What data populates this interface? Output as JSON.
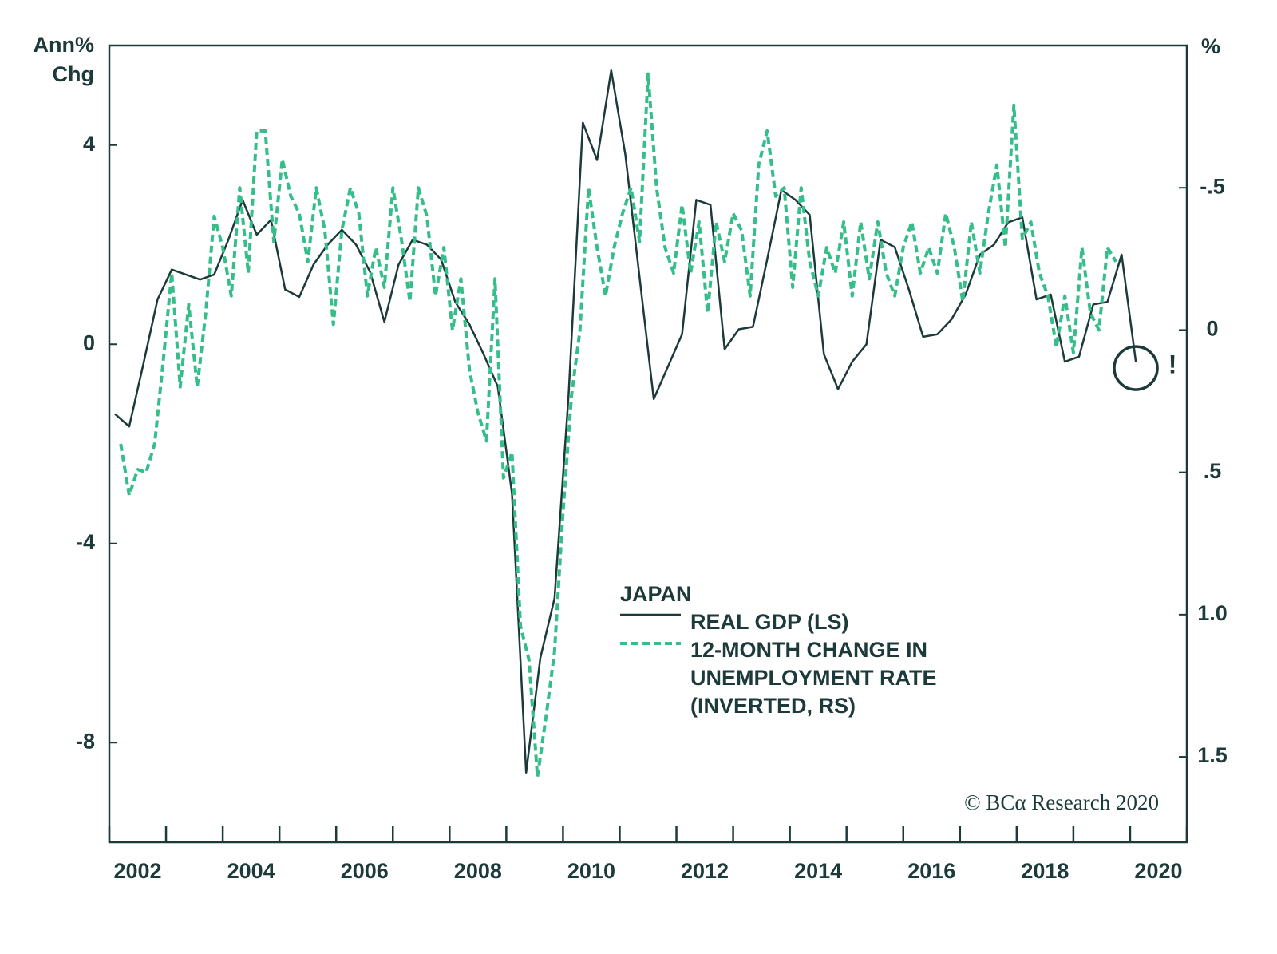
{
  "chart_data": {
    "type": "line",
    "ylabel": [
      "Ann%",
      "Chg"
    ],
    "y2label": "%",
    "legend_title": "JAPAN",
    "source": "© BCα Research 2020",
    "annotation": "!",
    "xlim": [
      2002,
      2021
    ],
    "xticks": [
      2002,
      2004,
      2006,
      2008,
      2010,
      2012,
      2014,
      2016,
      2018,
      2020
    ],
    "xminorticks": [
      2003,
      2005,
      2007,
      2009,
      2011,
      2013,
      2015,
      2017,
      2019,
      2021
    ],
    "ylim": [
      -10,
      6
    ],
    "yticks": [
      -8,
      -4,
      0,
      4
    ],
    "y2lim": [
      1.8,
      -1.0
    ],
    "y2ticks": [
      {
        "value": -0.5,
        "label": "-.5"
      },
      0,
      {
        "value": 0.5,
        "label": ".5"
      },
      {
        "value": 1.0,
        "label": "1.0"
      },
      {
        "value": 1.5,
        "label": "1.5"
      }
    ],
    "series": [
      {
        "name": "REAL GDP (LS)",
        "color": "#1d3a3a",
        "dash": false,
        "x": [
          2002.1,
          2002.35,
          2002.6,
          2002.85,
          2003.1,
          2003.35,
          2003.6,
          2003.85,
          2004.1,
          2004.35,
          2004.6,
          2004.85,
          2005.1,
          2005.35,
          2005.6,
          2005.85,
          2006.1,
          2006.35,
          2006.6,
          2006.85,
          2007.1,
          2007.35,
          2007.6,
          2007.85,
          2008.1,
          2008.35,
          2008.6,
          2008.85,
          2009.1,
          2009.35,
          2009.6,
          2009.85,
          2010.1,
          2010.35,
          2010.6,
          2010.85,
          2011.1,
          2011.35,
          2011.6,
          2011.85,
          2012.1,
          2012.35,
          2012.6,
          2012.85,
          2013.1,
          2013.35,
          2013.6,
          2013.85,
          2014.1,
          2014.35,
          2014.6,
          2014.85,
          2015.1,
          2015.35,
          2015.6,
          2015.85,
          2016.1,
          2016.35,
          2016.6,
          2016.85,
          2017.1,
          2017.35,
          2017.6,
          2017.85,
          2018.1,
          2018.35,
          2018.6,
          2018.85,
          2019.1,
          2019.35,
          2019.6,
          2019.85,
          2020.1
        ],
        "values": [
          -1.4,
          -1.65,
          -0.4,
          0.9,
          1.5,
          1.4,
          1.3,
          1.4,
          2.1,
          2.9,
          2.2,
          2.5,
          1.1,
          0.95,
          1.6,
          2.0,
          2.3,
          2.0,
          1.45,
          0.45,
          1.6,
          2.1,
          2.0,
          1.7,
          0.85,
          0.4,
          -0.2,
          -0.85,
          -3.0,
          -8.6,
          -6.3,
          -5.1,
          -1.0,
          4.45,
          3.7,
          5.5,
          3.8,
          1.35,
          -1.1,
          -0.45,
          0.2,
          2.9,
          2.8,
          -0.1,
          0.3,
          0.35,
          1.7,
          3.1,
          2.9,
          2.6,
          -0.2,
          -0.9,
          -0.35,
          0.0,
          2.1,
          1.95,
          1.1,
          0.15,
          0.2,
          0.5,
          1.0,
          1.8,
          2.0,
          2.45,
          2.55,
          0.9,
          1.0,
          -0.35,
          -0.25,
          0.8,
          0.85,
          1.8,
          -0.35
        ]
      },
      {
        "name": "12-MONTH CHANGE IN UNEMPLOYMENT RATE (INVERTED, RS)",
        "color": "#35bd8a",
        "dash": true,
        "axis": "y2",
        "x": [
          2002.2,
          2002.35,
          2002.5,
          2002.65,
          2002.8,
          2002.95,
          2003.1,
          2003.25,
          2003.4,
          2003.55,
          2003.7,
          2003.85,
          2004.0,
          2004.15,
          2004.3,
          2004.45,
          2004.6,
          2004.75,
          2004.9,
          2005.05,
          2005.2,
          2005.35,
          2005.5,
          2005.65,
          2005.8,
          2005.95,
          2006.1,
          2006.25,
          2006.4,
          2006.55,
          2006.7,
          2006.85,
          2007.0,
          2007.15,
          2007.3,
          2007.45,
          2007.6,
          2007.75,
          2007.9,
          2008.05,
          2008.2,
          2008.35,
          2008.5,
          2008.65,
          2008.8,
          2008.95,
          2009.1,
          2009.25,
          2009.4,
          2009.55,
          2009.7,
          2009.85,
          2010.0,
          2010.15,
          2010.3,
          2010.45,
          2010.6,
          2010.75,
          2010.9,
          2011.05,
          2011.2,
          2011.35,
          2011.5,
          2011.65,
          2011.8,
          2011.95,
          2012.1,
          2012.25,
          2012.4,
          2012.55,
          2012.7,
          2012.85,
          2013.0,
          2013.15,
          2013.3,
          2013.45,
          2013.6,
          2013.75,
          2013.9,
          2014.05,
          2014.2,
          2014.35,
          2014.5,
          2014.65,
          2014.8,
          2014.95,
          2015.1,
          2015.25,
          2015.4,
          2015.55,
          2015.7,
          2015.85,
          2016.0,
          2016.15,
          2016.3,
          2016.45,
          2016.6,
          2016.75,
          2016.9,
          2017.05,
          2017.2,
          2017.35,
          2017.5,
          2017.65,
          2017.8,
          2017.95,
          2018.1,
          2018.25,
          2018.4,
          2018.55,
          2018.7,
          2018.85,
          2019.0,
          2019.15,
          2019.3,
          2019.45,
          2019.6,
          2019.75
        ],
        "values": [
          0.4,
          0.58,
          0.49,
          0.5,
          0.4,
          0.11,
          -0.2,
          0.2,
          -0.09,
          0.2,
          -0.06,
          -0.4,
          -0.29,
          -0.12,
          -0.5,
          -0.2,
          -0.7,
          -0.7,
          -0.31,
          -0.6,
          -0.47,
          -0.41,
          -0.24,
          -0.5,
          -0.35,
          -0.02,
          -0.35,
          -0.5,
          -0.41,
          -0.12,
          -0.29,
          -0.15,
          -0.5,
          -0.32,
          -0.1,
          -0.5,
          -0.4,
          -0.12,
          -0.29,
          0,
          -0.18,
          0.14,
          0.29,
          0.39,
          -0.18,
          0.52,
          0.43,
          1.04,
          1.16,
          1.57,
          1.36,
          1.13,
          0.64,
          0.23,
          0,
          -0.5,
          -0.29,
          -0.12,
          -0.29,
          -0.41,
          -0.5,
          -0.31,
          -0.9,
          -0.5,
          -0.29,
          -0.2,
          -0.44,
          -0.2,
          -0.38,
          -0.06,
          -0.38,
          -0.24,
          -0.41,
          -0.35,
          -0.12,
          -0.58,
          -0.7,
          -0.47,
          -0.5,
          -0.15,
          -0.5,
          -0.24,
          -0.12,
          -0.29,
          -0.2,
          -0.38,
          -0.12,
          -0.38,
          -0.18,
          -0.38,
          -0.2,
          -0.12,
          -0.29,
          -0.38,
          -0.2,
          -0.29,
          -0.2,
          -0.41,
          -0.29,
          -0.1,
          -0.38,
          -0.2,
          -0.41,
          -0.58,
          -0.29,
          -0.79,
          -0.32,
          -0.38,
          -0.2,
          -0.12,
          0.06,
          -0.12,
          0.08,
          -0.29,
          -0.06,
          0,
          -0.29,
          -0.24
        ]
      }
    ]
  }
}
